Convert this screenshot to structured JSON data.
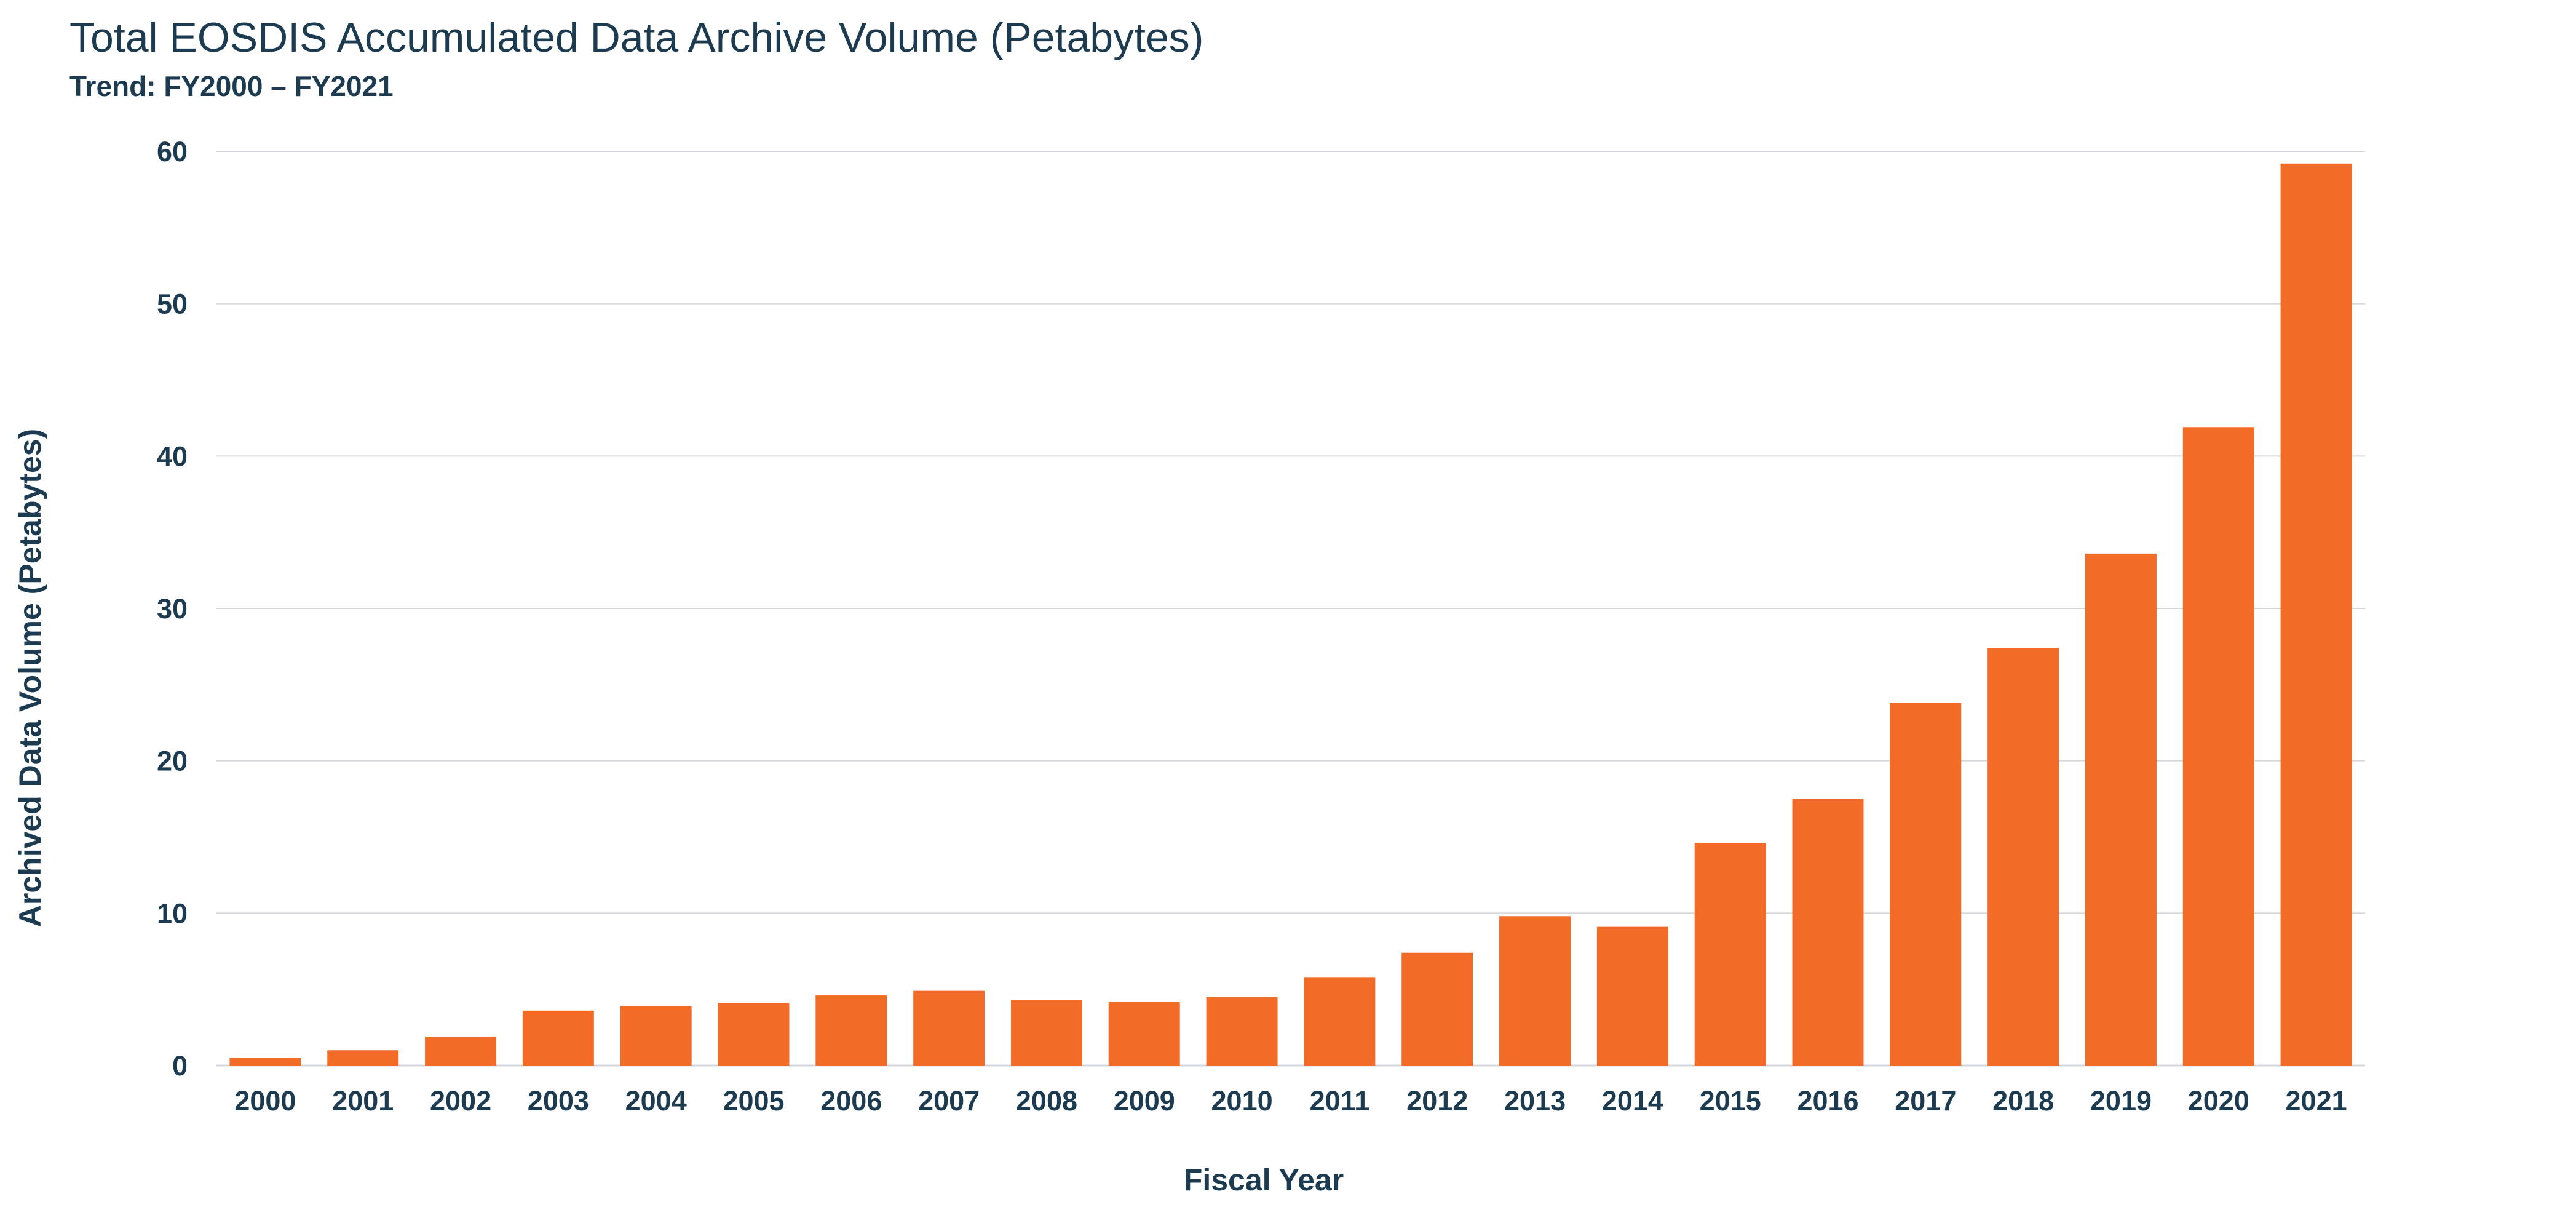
{
  "colors": {
    "bar": "#f26b27",
    "text": "#1d3b50",
    "grid": "#d3d7db"
  },
  "chart_data": {
    "type": "bar",
    "title": "Total EOSDIS Accumulated Data Archive Volume (Petabytes)",
    "subtitle": "Trend: FY2000 – FY2021",
    "xlabel": "Fiscal Year",
    "ylabel": "Archived Data Volume (Petabytes)",
    "ylim": [
      0,
      60
    ],
    "yticks": [
      0,
      10,
      20,
      30,
      40,
      50,
      60
    ],
    "grid": true,
    "categories": [
      "2000",
      "2001",
      "2002",
      "2003",
      "2004",
      "2005",
      "2006",
      "2007",
      "2008",
      "2009",
      "2010",
      "2011",
      "2012",
      "2013",
      "2014",
      "2015",
      "2016",
      "2017",
      "2018",
      "2019",
      "2020",
      "2021"
    ],
    "values": [
      0.5,
      1.0,
      1.9,
      3.6,
      3.9,
      4.1,
      4.6,
      4.9,
      4.3,
      4.2,
      4.5,
      5.8,
      7.4,
      9.8,
      9.1,
      14.6,
      17.5,
      23.8,
      27.4,
      33.6,
      41.9,
      59.2
    ]
  }
}
